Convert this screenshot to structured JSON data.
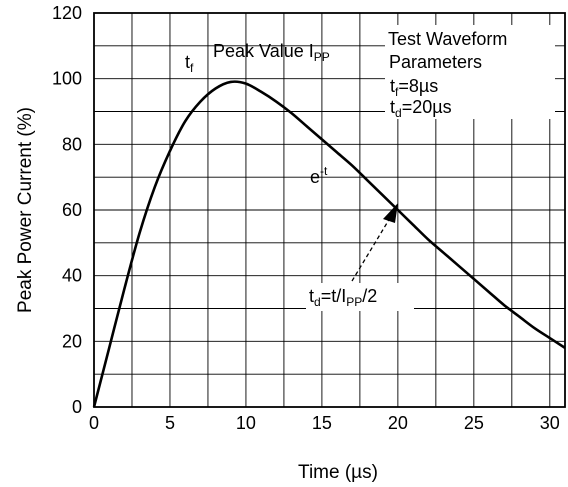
{
  "chart_data": {
    "type": "line",
    "title": "",
    "xlabel": "Time (µs)",
    "ylabel": "Peak Power Current (%)",
    "xlim": [
      0,
      31
    ],
    "ylim": [
      0,
      120
    ],
    "x_ticks": [
      "0",
      "5",
      "10",
      "15",
      "20",
      "25",
      "30"
    ],
    "y_ticks": [
      "0",
      "20",
      "40",
      "60",
      "80",
      "100",
      "120"
    ],
    "grid": true,
    "series": [
      {
        "x": [
          0,
          1,
          2,
          3,
          4,
          5,
          6,
          7,
          8,
          9,
          10,
          11,
          12,
          13,
          14,
          15,
          16,
          17,
          18,
          19,
          20,
          21,
          22,
          23,
          24,
          25,
          26,
          27,
          28,
          29,
          30,
          31
        ],
        "values": [
          0,
          18,
          36,
          53,
          67,
          78,
          87,
          93,
          97,
          99,
          98.5,
          96,
          93,
          89.5,
          85.5,
          81.5,
          77.5,
          73.5,
          69,
          64.5,
          60,
          55.5,
          51,
          47,
          43,
          39,
          35,
          31,
          27.5,
          24,
          21,
          18
        ]
      }
    ],
    "annotations": {
      "tf_label": {
        "main": "t",
        "sub": "f"
      },
      "peak_label": {
        "text": "Peak Value I",
        "sub": "PP"
      },
      "params_line1": "Test Waveform",
      "params_line2": "Parameters",
      "params_tf": {
        "main": "t",
        "sub": "f",
        "value": "=8µs"
      },
      "params_td": {
        "main": "t",
        "sub": "d",
        "value": "=20µs"
      },
      "decay_label": {
        "main": "e",
        "sup": "-t"
      },
      "td_label": {
        "a": "t",
        "a_sub": "d",
        "b": "=t/I",
        "b_sub": "PP",
        "c": "/2"
      }
    }
  }
}
